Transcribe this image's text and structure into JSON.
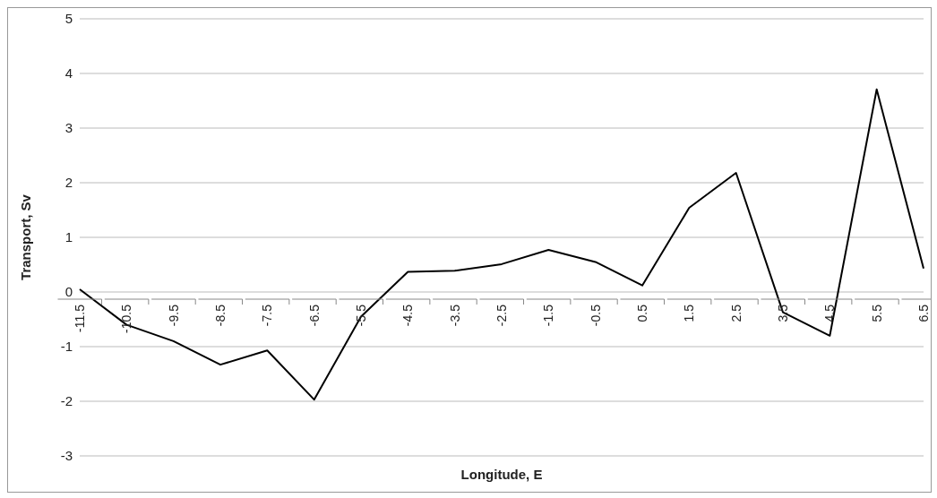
{
  "chart_data": {
    "type": "line",
    "xlabel": "Longitude, E",
    "ylabel": "Transport, Sv",
    "categories": [
      "-11.5",
      "-10.5",
      "-9.5",
      "-8.5",
      "-7.5",
      "-6.5",
      "-5.5",
      "-4.5",
      "-3.5",
      "-2.5",
      "-1.5",
      "-0.5",
      "0.5",
      "1.5",
      "2.5",
      "3.5",
      "4.5",
      "5.5",
      "6.5"
    ],
    "series": [
      {
        "color": "#000000",
        "values": [
          0.05,
          -0.6,
          -0.9,
          -1.33,
          -1.07,
          -1.97,
          -0.45,
          0.37,
          0.39,
          0.51,
          0.77,
          0.55,
          0.12,
          1.54,
          2.18,
          -0.37,
          -0.8,
          3.71,
          0.43
        ]
      }
    ],
    "ylim": [
      -3,
      5
    ],
    "yticks": [
      -3,
      -2,
      -1,
      0,
      1,
      2,
      3,
      4,
      5
    ],
    "grid": "y",
    "marker": "none",
    "line_style": "solid",
    "legend": false
  }
}
